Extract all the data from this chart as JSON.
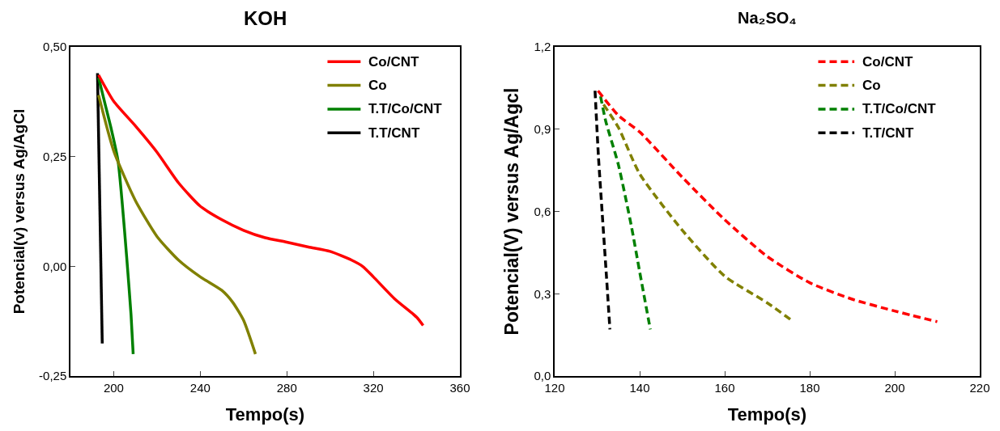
{
  "chart_data": [
    {
      "type": "line",
      "title": "KOH",
      "xlabel": "Tempo(s)",
      "ylabel": "Potencial(v) versus Ag/AgCl",
      "xlim": [
        180,
        360
      ],
      "xticks": [
        200,
        240,
        280,
        320,
        360
      ],
      "ylim": [
        -0.25,
        0.5
      ],
      "yticks": [
        {
          "value": -0.25,
          "label": "-0,25"
        },
        {
          "value": 0,
          "label": "0,00"
        },
        {
          "value": 0.25,
          "label": "0,25"
        },
        {
          "value": 0.5,
          "label": "0,50"
        }
      ],
      "legend": "top right",
      "line_style": "solid",
      "series": [
        {
          "name": "Co/CNT",
          "color": "#ff0000",
          "x": [
            193,
            200,
            210,
            220,
            230,
            240,
            250,
            260,
            270,
            280,
            290,
            300,
            310,
            315,
            320,
            330,
            340,
            343
          ],
          "values": [
            0.436,
            0.376,
            0.32,
            0.26,
            0.19,
            0.137,
            0.106,
            0.082,
            0.065,
            0.055,
            0.044,
            0.034,
            0.014,
            0.0,
            -0.024,
            -0.075,
            -0.116,
            -0.135
          ]
        },
        {
          "name": "Co",
          "color": "#808000",
          "x": [
            193,
            200,
            210,
            220,
            230,
            240,
            250,
            255,
            260,
            265.5
          ],
          "values": [
            0.39,
            0.263,
            0.15,
            0.068,
            0.014,
            -0.024,
            -0.055,
            -0.082,
            -0.123,
            -0.2
          ]
        },
        {
          "name": "T.T/Co/CNT",
          "color": "#008000",
          "x": [
            193,
            196,
            199,
            202,
            204,
            206,
            208,
            209
          ],
          "values": [
            0.43,
            0.37,
            0.31,
            0.24,
            0.14,
            0.02,
            -0.11,
            -0.2
          ]
        },
        {
          "name": "T.T/CNT",
          "color": "#000000",
          "x": [
            192.5,
            194.7
          ],
          "values": [
            0.44,
            -0.176
          ]
        }
      ]
    },
    {
      "type": "line",
      "title": "Na₂SO₄",
      "xlabel": "Tempo(s)",
      "ylabel": "Potencial(V) versus Ag/Agcl",
      "xlim": [
        120,
        220
      ],
      "xticks": [
        120,
        140,
        160,
        180,
        200,
        220
      ],
      "ylim": [
        0,
        1.2
      ],
      "yticks": [
        {
          "value": 0,
          "label": "0,0"
        },
        {
          "value": 0.3,
          "label": "0,3"
        },
        {
          "value": 0.6,
          "label": "0,6"
        },
        {
          "value": 0.9,
          "label": "0,9"
        },
        {
          "value": 1.2,
          "label": "1,2"
        }
      ],
      "legend": "top right",
      "line_style": "dashed",
      "series": [
        {
          "name": "Co/CNT",
          "color": "#ff0000",
          "x": [
            130.2,
            135,
            140,
            150,
            160,
            170,
            180,
            190,
            200,
            210
          ],
          "values": [
            1.04,
            0.95,
            0.89,
            0.725,
            0.57,
            0.436,
            0.34,
            0.28,
            0.237,
            0.198
          ]
        },
        {
          "name": "Co",
          "color": "#808000",
          "x": [
            131.5,
            135,
            140,
            150,
            160,
            170,
            176
          ],
          "values": [
            0.99,
            0.906,
            0.737,
            0.532,
            0.364,
            0.267,
            0.2
          ]
        },
        {
          "name": "T.T/Co/CNT",
          "color": "#008000",
          "x": [
            130.8,
            132,
            135,
            138,
            140,
            142.5
          ],
          "values": [
            1.02,
            0.93,
            0.77,
            0.55,
            0.38,
            0.17
          ]
        },
        {
          "name": "T.T/CNT",
          "color": "#000000",
          "x": [
            129.5,
            130.3,
            131.2,
            132.2,
            133
          ],
          "values": [
            1.04,
            0.8,
            0.59,
            0.36,
            0.17
          ]
        }
      ]
    }
  ]
}
